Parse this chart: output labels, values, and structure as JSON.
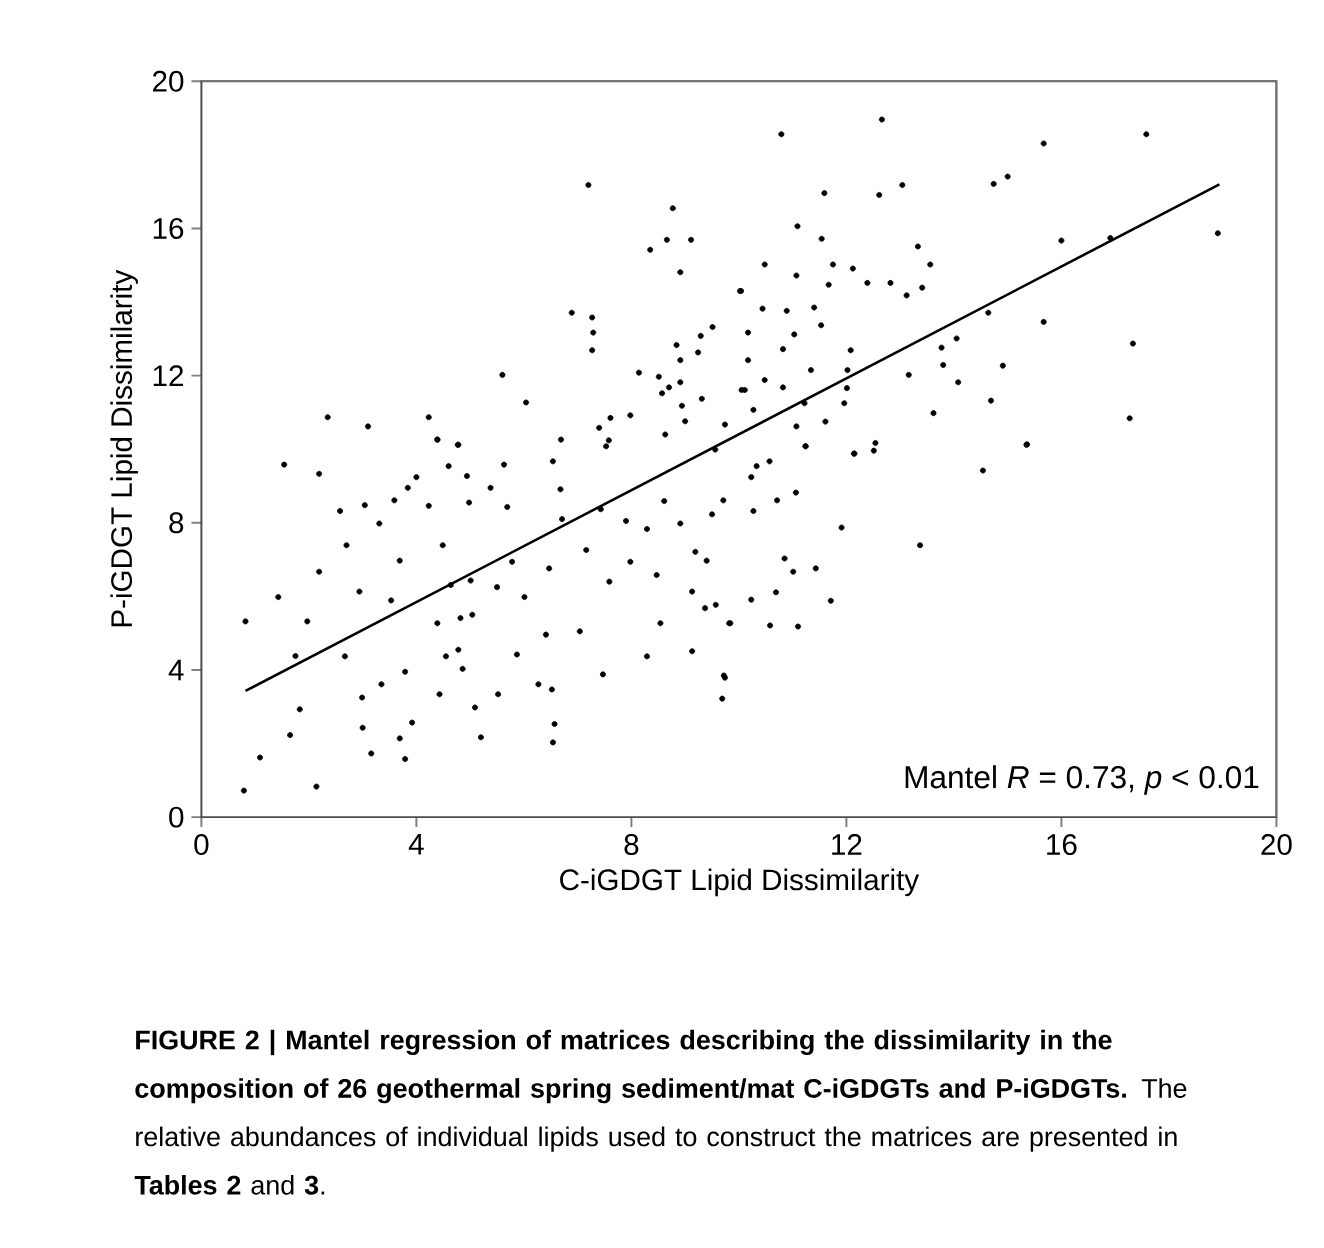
{
  "chart_data": {
    "type": "scatter",
    "xlabel": "C-iGDGT Lipid Dissimilarity",
    "ylabel": "P-iGDGT Lipid Dissimilarity",
    "xlim": [
      0,
      20
    ],
    "ylim": [
      0,
      20
    ],
    "xticks": [
      0,
      4,
      8,
      12,
      16,
      20
    ],
    "yticks": [
      0,
      4,
      8,
      12,
      16,
      20
    ],
    "annotations": [
      "Mantel *R* = 0.73, *p* < 0.01",
      "**FIGURE 2 | Mantel regression of matrices describing the dissimilarity in the composition of 26 geothermal spring sediment/mat C-iGDGTs and P-iGDGTs.** The relative abundances of individual lipids used to construct the matrices are presented in **Tables 2** and **3**."
    ],
    "series": [
      {
        "color": "#000000",
        "marker": "circle",
        "x": [
          0.79,
          1.09,
          2.14,
          0.82,
          1.54,
          2.19,
          1.43,
          1.75,
          1.65,
          1.83,
          1.97,
          2.19,
          2.58,
          2.7,
          3.04,
          3.31,
          2.94,
          2.67,
          2.99,
          3.16,
          3.0,
          3.35,
          3.53,
          3.69,
          3.59,
          3.84,
          4.0,
          3.79,
          3.69,
          3.92,
          3.79,
          4.23,
          4.39,
          4.49,
          4.6,
          4.77,
          4.39,
          4.43,
          4.55,
          4.78,
          4.86,
          5.2,
          5.09,
          4.98,
          4.94,
          5.01,
          4.64,
          4.82,
          5.04,
          5.38,
          5.63,
          5.69,
          5.52,
          5.87,
          5.5,
          5.78,
          6.01,
          6.54,
          6.68,
          6.71,
          6.41,
          6.47,
          6.27,
          6.52,
          6.57,
          6.54,
          7.04,
          7.47,
          7.16,
          7.43,
          7.59,
          7.53,
          7.9,
          7.98,
          8.29,
          8.54,
          8.29,
          8.47,
          8.61,
          8.91,
          9.13,
          9.19,
          9.4,
          9.13,
          9.37,
          9.57,
          9.69,
          9.72,
          9.82,
          9.71,
          9.5,
          9.56,
          10.79,
          12.66,
          15.67,
          17.58,
          11.59,
          12.61,
          13.04,
          14.74,
          15.0,
          18.91,
          11.09,
          11.54,
          16.0,
          16.91,
          10.48,
          11.75,
          12.12,
          13.33,
          13.56,
          10.04,
          11.07,
          11.67,
          12.39,
          12.82,
          13.12,
          13.41,
          10.44,
          10.89,
          11.4,
          14.64,
          15.67,
          17.33,
          10.17,
          11.03,
          11.53,
          10.82,
          12.08,
          13.77,
          14.05,
          10.17,
          11.34,
          12.02,
          14.91,
          10.48,
          10.82,
          12.01,
          13.8,
          14.08,
          13.16,
          10.11,
          11.22,
          11.96,
          14.69,
          10.27,
          11.61,
          13.62,
          17.27,
          11.07,
          15.36,
          11.24,
          12.54,
          12.14,
          15.35,
          14.54,
          13.37,
          11.91,
          10.85,
          11.01,
          11.43,
          10.23,
          10.69,
          11.71,
          9.84,
          10.58,
          11.1,
          9.74,
          10.27,
          10.71,
          11.06,
          10.23,
          10.33,
          10.57,
          11.24,
          12.15,
          12.51,
          7.2,
          8.77,
          8.66,
          9.11,
          8.35,
          8.91,
          10.02,
          6.89,
          7.27,
          7.29,
          7.27,
          9.51,
          9.29,
          8.84,
          9.24,
          8.91,
          5.6,
          8.14,
          8.51,
          8.7,
          8.57,
          8.91,
          6.04,
          9.31,
          8.94,
          9.0,
          2.35,
          3.1,
          4.23,
          4.39,
          4.78,
          6.69,
          7.4,
          7.61,
          7.98,
          7.58,
          8.63,
          9.74,
          10.05
        ],
        "values": [
          0.72,
          1.62,
          0.83,
          5.32,
          9.58,
          9.33,
          5.98,
          4.38,
          2.23,
          2.93,
          5.32,
          6.67,
          8.32,
          7.39,
          8.48,
          7.98,
          6.13,
          4.37,
          3.25,
          1.73,
          2.43,
          3.61,
          5.89,
          6.97,
          8.61,
          8.95,
          9.24,
          1.58,
          2.14,
          2.57,
          3.95,
          8.46,
          10.26,
          7.39,
          9.54,
          10.12,
          5.27,
          3.34,
          4.37,
          4.55,
          4.03,
          2.17,
          2.98,
          8.55,
          9.27,
          6.43,
          6.31,
          5.41,
          5.5,
          8.95,
          9.58,
          8.43,
          3.34,
          4.42,
          6.25,
          6.94,
          5.98,
          9.67,
          8.91,
          8.1,
          4.96,
          6.76,
          3.61,
          3.47,
          2.53,
          2.03,
          5.05,
          3.88,
          7.26,
          8.37,
          6.4,
          10.08,
          8.05,
          6.94,
          4.37,
          5.27,
          7.83,
          6.58,
          8.59,
          7.98,
          4.51,
          7.21,
          6.97,
          6.13,
          5.68,
          5.77,
          3.22,
          3.85,
          5.27,
          8.61,
          8.23,
          9.99,
          18.56,
          18.96,
          18.31,
          18.56,
          16.96,
          16.91,
          17.18,
          17.21,
          17.41,
          15.87,
          16.06,
          15.72,
          15.67,
          15.74,
          15.02,
          15.02,
          14.91,
          15.51,
          15.02,
          14.3,
          14.72,
          14.47,
          14.52,
          14.52,
          14.18,
          14.39,
          13.82,
          13.76,
          13.85,
          13.71,
          13.46,
          12.87,
          13.17,
          13.12,
          13.37,
          12.72,
          12.69,
          12.76,
          13.01,
          12.42,
          12.15,
          12.15,
          12.27,
          11.88,
          11.68,
          11.66,
          12.29,
          11.82,
          12.02,
          11.61,
          11.25,
          11.25,
          11.32,
          11.07,
          10.75,
          10.98,
          10.84,
          10.62,
          10.13,
          10.08,
          10.17,
          9.88,
          10.12,
          9.42,
          7.39,
          7.87,
          7.03,
          6.67,
          6.76,
          5.91,
          6.11,
          5.88,
          5.27,
          5.21,
          5.18,
          3.79,
          8.32,
          8.61,
          8.82,
          9.24,
          9.54,
          9.67,
          10.08,
          9.88,
          9.96,
          17.18,
          16.55,
          15.69,
          15.69,
          15.42,
          14.81,
          14.3,
          13.71,
          13.58,
          13.17,
          12.69,
          13.32,
          13.08,
          12.83,
          12.63,
          12.42,
          12.02,
          12.08,
          11.97,
          11.68,
          11.52,
          11.82,
          11.27,
          11.37,
          11.18,
          10.76,
          10.87,
          10.62,
          10.87,
          10.26,
          10.12,
          10.26,
          10.58,
          10.85,
          10.92,
          10.24,
          10.4,
          10.67,
          11.61
        ]
      },
      {
        "type": "line",
        "color": "#000000",
        "marker": "none",
        "line_style": "solid",
        "x": [
          0.82,
          18.94
        ],
        "values": [
          3.43,
          17.2
        ]
      }
    ]
  }
}
